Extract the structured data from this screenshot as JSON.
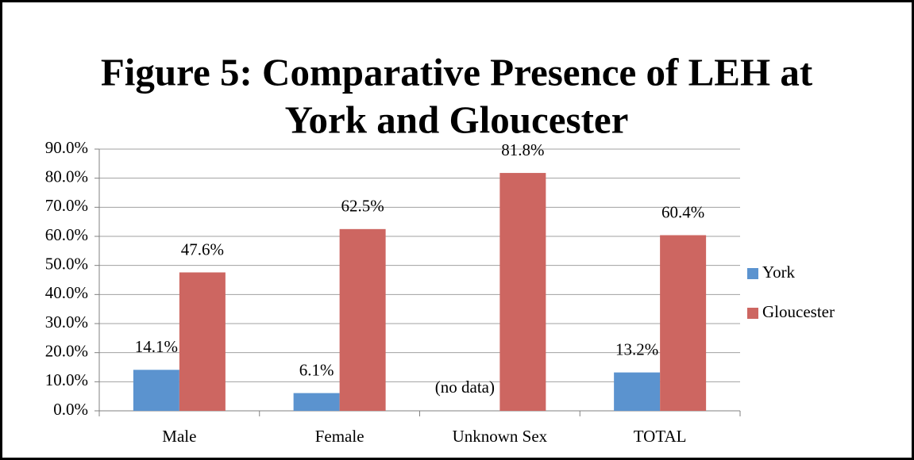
{
  "chart_data": {
    "type": "bar",
    "title": [
      "Figure 5: Comparative Presence of LEH at",
      "York and Gloucester"
    ],
    "categories": [
      "Male",
      "Female",
      "Unknown Sex",
      "TOTAL"
    ],
    "series": [
      {
        "name": "York",
        "color": "#5b93cf",
        "values": [
          14.1,
          6.1,
          null,
          13.2
        ],
        "value_labels": [
          "14.1%",
          "6.1%",
          null,
          "13.2%"
        ]
      },
      {
        "name": "Gloucester",
        "color": "#cd6661",
        "values": [
          47.6,
          62.5,
          81.8,
          60.4
        ],
        "value_labels": [
          "47.6%",
          "62.5%",
          "81.8%",
          "60.4%"
        ]
      }
    ],
    "annotation": "(no data)",
    "ylim": [
      0,
      90
    ],
    "yticks": [
      {
        "value": 0,
        "label": "0.0%"
      },
      {
        "value": 10,
        "label": "10.0%"
      },
      {
        "value": 20,
        "label": "20.0%"
      },
      {
        "value": 30,
        "label": "30.0%"
      },
      {
        "value": 40,
        "label": "40.0%"
      },
      {
        "value": 50,
        "label": "50.0%"
      },
      {
        "value": 60,
        "label": "60.0%"
      },
      {
        "value": 70,
        "label": "70.0%"
      },
      {
        "value": 80,
        "label": "80.0%"
      },
      {
        "value": 90,
        "label": "90.0%"
      }
    ],
    "grid": true,
    "legend": "right"
  }
}
